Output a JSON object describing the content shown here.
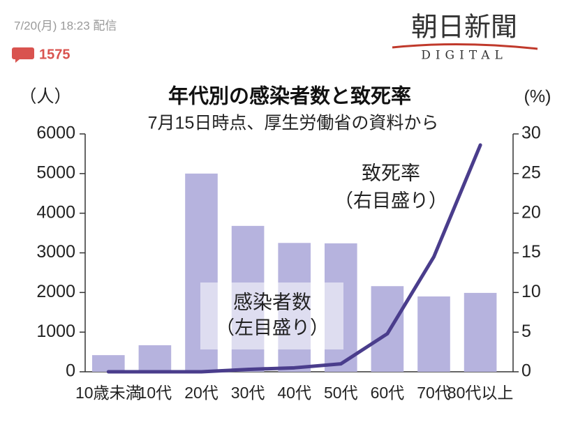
{
  "header": {
    "date": "7/20(月) 18:23 配信",
    "comments": "1575",
    "logo": "朝日新聞",
    "logo_sub": "DIGITAL"
  },
  "chart_data": {
    "type": "bar_line",
    "title": "年代別の感染者数と致死率",
    "subtitle": "7月15日時点、厚生労働省の資料から",
    "y_label": "（人）",
    "y2_label": "(%)",
    "categories": [
      "10歳未満",
      "10代",
      "20代",
      "30代",
      "40代",
      "50代",
      "60代",
      "70代",
      "80代以上"
    ],
    "series": [
      {
        "name": "感染者数",
        "type": "bar",
        "color": "#b6b3de",
        "values": [
          420,
          670,
          5000,
          3680,
          3250,
          3240,
          2160,
          1900,
          1990
        ],
        "note": "（左目盛り）"
      },
      {
        "name": "致死率",
        "type": "line",
        "axis": "y2",
        "color": "#4a3d8c",
        "values": [
          0,
          0,
          0,
          0.3,
          0.5,
          1.0,
          4.8,
          14.5,
          28.6
        ],
        "note": "（右目盛り）"
      }
    ],
    "ylim": [
      0,
      6000
    ],
    "yticks": [
      0,
      1000,
      2000,
      3000,
      4000,
      5000,
      6000
    ],
    "y2lim": [
      0,
      30
    ],
    "y2ticks": [
      0,
      5,
      10,
      15,
      20,
      25,
      30
    ]
  }
}
